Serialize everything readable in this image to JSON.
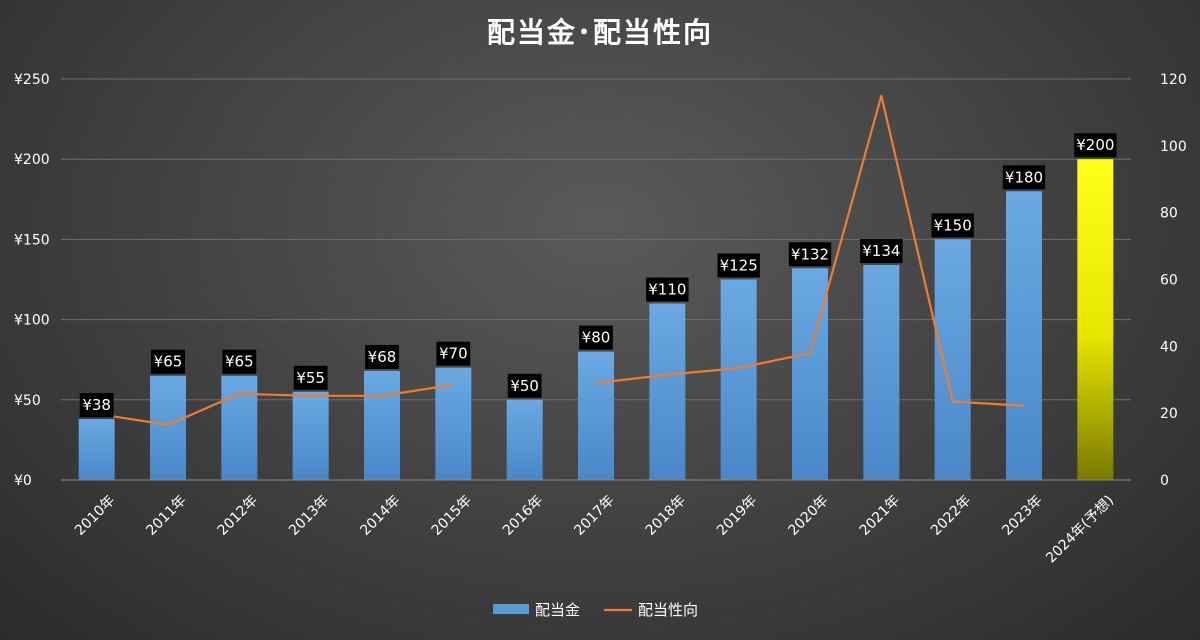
{
  "chart_data": {
    "type": "bar",
    "title": "配当金･配当性向",
    "categories": [
      "2010年",
      "2011年",
      "2012年",
      "2013年",
      "2014年",
      "2015年",
      "2016年",
      "2017年",
      "2018年",
      "2019年",
      "2020年",
      "2021年",
      "2022年",
      "2023年",
      "2024年(予想)"
    ],
    "series": [
      {
        "name": "配当金",
        "type": "bar",
        "axis": "left",
        "color": "#5b9bd5",
        "highlight_color": "#ffff00",
        "highlight_index": 14,
        "values": [
          38,
          65,
          65,
          55,
          68,
          70,
          50,
          80,
          110,
          125,
          132,
          134,
          150,
          180,
          200
        ],
        "data_labels": [
          "¥38",
          "¥65",
          "¥65",
          "¥55",
          "¥68",
          "¥70",
          "¥50",
          "¥80",
          "¥110",
          "¥125",
          "¥132",
          "¥134",
          "¥150",
          "¥180",
          "¥200"
        ]
      },
      {
        "name": "配当性向",
        "type": "line",
        "axis": "right",
        "color": "#ed7d31",
        "values": [
          19.8,
          16.5,
          25.8,
          25.2,
          25.2,
          28.5,
          null,
          29,
          31.5,
          33.5,
          38,
          115,
          23.5,
          22.2,
          null
        ]
      }
    ],
    "y_left": {
      "ylim": [
        0,
        250
      ],
      "ticks": [
        "¥0",
        "¥50",
        "¥100",
        "¥150",
        "¥200",
        "¥250"
      ],
      "tick_values": [
        0,
        50,
        100,
        150,
        200,
        250
      ]
    },
    "y_right": {
      "ylim": [
        0,
        120
      ],
      "ticks": [
        "0",
        "20",
        "40",
        "60",
        "80",
        "100",
        "120"
      ],
      "tick_values": [
        0,
        20,
        40,
        60,
        80,
        100,
        120
      ]
    },
    "grid": true,
    "legend": {
      "position": "bottom",
      "items": [
        "配当金",
        "配当性向"
      ]
    }
  }
}
